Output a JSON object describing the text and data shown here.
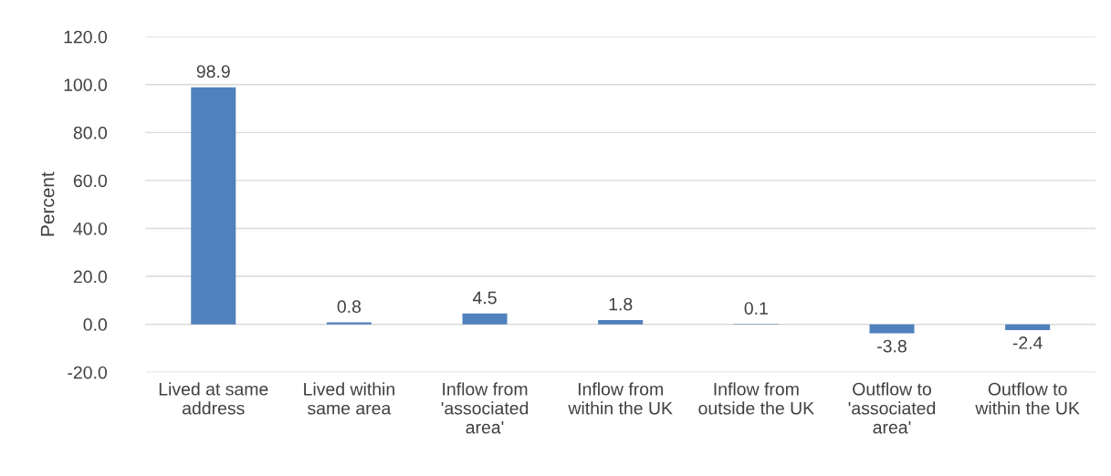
{
  "chart_data": {
    "type": "bar",
    "ylabel": "Percent",
    "categories": [
      "Lived at same\naddress",
      "Lived within\nsame area",
      "Inflow from\n'associated\narea'",
      "Inflow from\nwithin the UK",
      "Inflow from\noutside the UK",
      "Outflow to\n'associated\narea'",
      "Outflow to\nwithin the UK"
    ],
    "values": [
      98.9,
      0.8,
      4.5,
      1.8,
      0.1,
      -3.8,
      -2.4
    ],
    "color": "#4f81bd",
    "ylim": [
      -20,
      120
    ],
    "yticks": [
      {
        "value": -20,
        "label": "-20.0"
      },
      {
        "value": 0,
        "label": "0.0"
      },
      {
        "value": 20,
        "label": "20.0"
      },
      {
        "value": 40,
        "label": "40.0"
      },
      {
        "value": 60,
        "label": "60.0"
      },
      {
        "value": 80,
        "label": "80.0"
      },
      {
        "value": 100,
        "label": "100.0"
      },
      {
        "value": 120,
        "label": "120.0"
      }
    ],
    "grid": "y",
    "data_labels": true
  }
}
